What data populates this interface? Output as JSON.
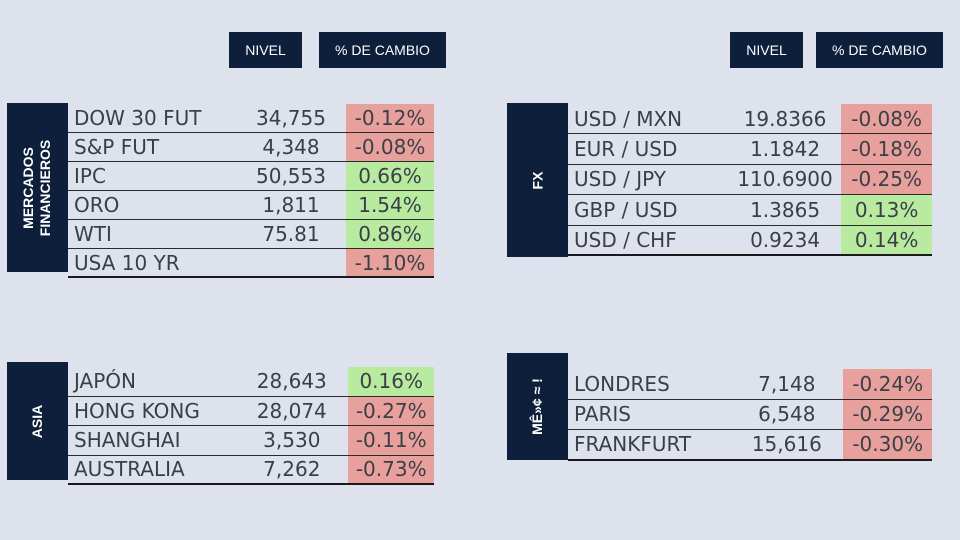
{
  "headers": {
    "left": {
      "nivel": "NIVEL",
      "cambio": "% DE CAMBIO"
    },
    "right": {
      "nivel": "NIVEL",
      "cambio": "% DE CAMBIO"
    }
  },
  "colors": {
    "navy": "#0d1f3a",
    "negative": "#e8a09c",
    "positive": "#b8eaa0",
    "background": "#dde2ec"
  },
  "mercados": {
    "title_line1": "MERCADOS",
    "title_line2": "FINANCIEROS",
    "rows": [
      {
        "name": "DOW 30 FUT",
        "level": "34,755",
        "change": "-0.12%",
        "direction": "neg"
      },
      {
        "name": "S&P FUT",
        "level": "4,348",
        "change": "-0.08%",
        "direction": "neg"
      },
      {
        "name": "IPC",
        "level": "50,553",
        "change": "0.66%",
        "direction": "pos"
      },
      {
        "name": "ORO",
        "level": "1,811",
        "change": "1.54%",
        "direction": "pos"
      },
      {
        "name": "WTI",
        "level": "75.81",
        "change": "0.86%",
        "direction": "pos"
      },
      {
        "name": "USA 10 YR",
        "level": "",
        "change": "-1.10%",
        "direction": "neg"
      }
    ]
  },
  "fx": {
    "title": "FX",
    "rows": [
      {
        "name": "USD / MXN",
        "level": "19.8366",
        "change": "-0.08%",
        "direction": "neg"
      },
      {
        "name": "EUR / USD",
        "level": "1.1842",
        "change": "-0.18%",
        "direction": "neg"
      },
      {
        "name": "USD / JPY",
        "level": "110.6900",
        "change": "-0.25%",
        "direction": "neg"
      },
      {
        "name": "GBP / USD",
        "level": "1.3865",
        "change": "0.13%",
        "direction": "pos"
      },
      {
        "name": "USD / CHF",
        "level": "0.9234",
        "change": "0.14%",
        "direction": "pos"
      }
    ]
  },
  "asia": {
    "title": "ASIA",
    "rows": [
      {
        "name": "JAPÓN",
        "level": "28,643",
        "change": "0.16%",
        "direction": "pos"
      },
      {
        "name": "HONG KONG",
        "level": "28,074",
        "change": "-0.27%",
        "direction": "neg"
      },
      {
        "name": "SHANGHAI",
        "level": "3,530",
        "change": "-0.11%",
        "direction": "neg"
      },
      {
        "name": "AUSTRALIA",
        "level": "7,262",
        "change": "-0.73%",
        "direction": "neg"
      }
    ]
  },
  "europa": {
    "title": "MÊ»¢ ≈ !",
    "rows": [
      {
        "name": "LONDRES",
        "level": "7,148",
        "change": "-0.24%",
        "direction": "neg"
      },
      {
        "name": "PARIS",
        "level": "6,548",
        "change": "-0.29%",
        "direction": "neg"
      },
      {
        "name": "FRANKFURT",
        "level": "15,616",
        "change": "-0.30%",
        "direction": "neg"
      }
    ]
  }
}
